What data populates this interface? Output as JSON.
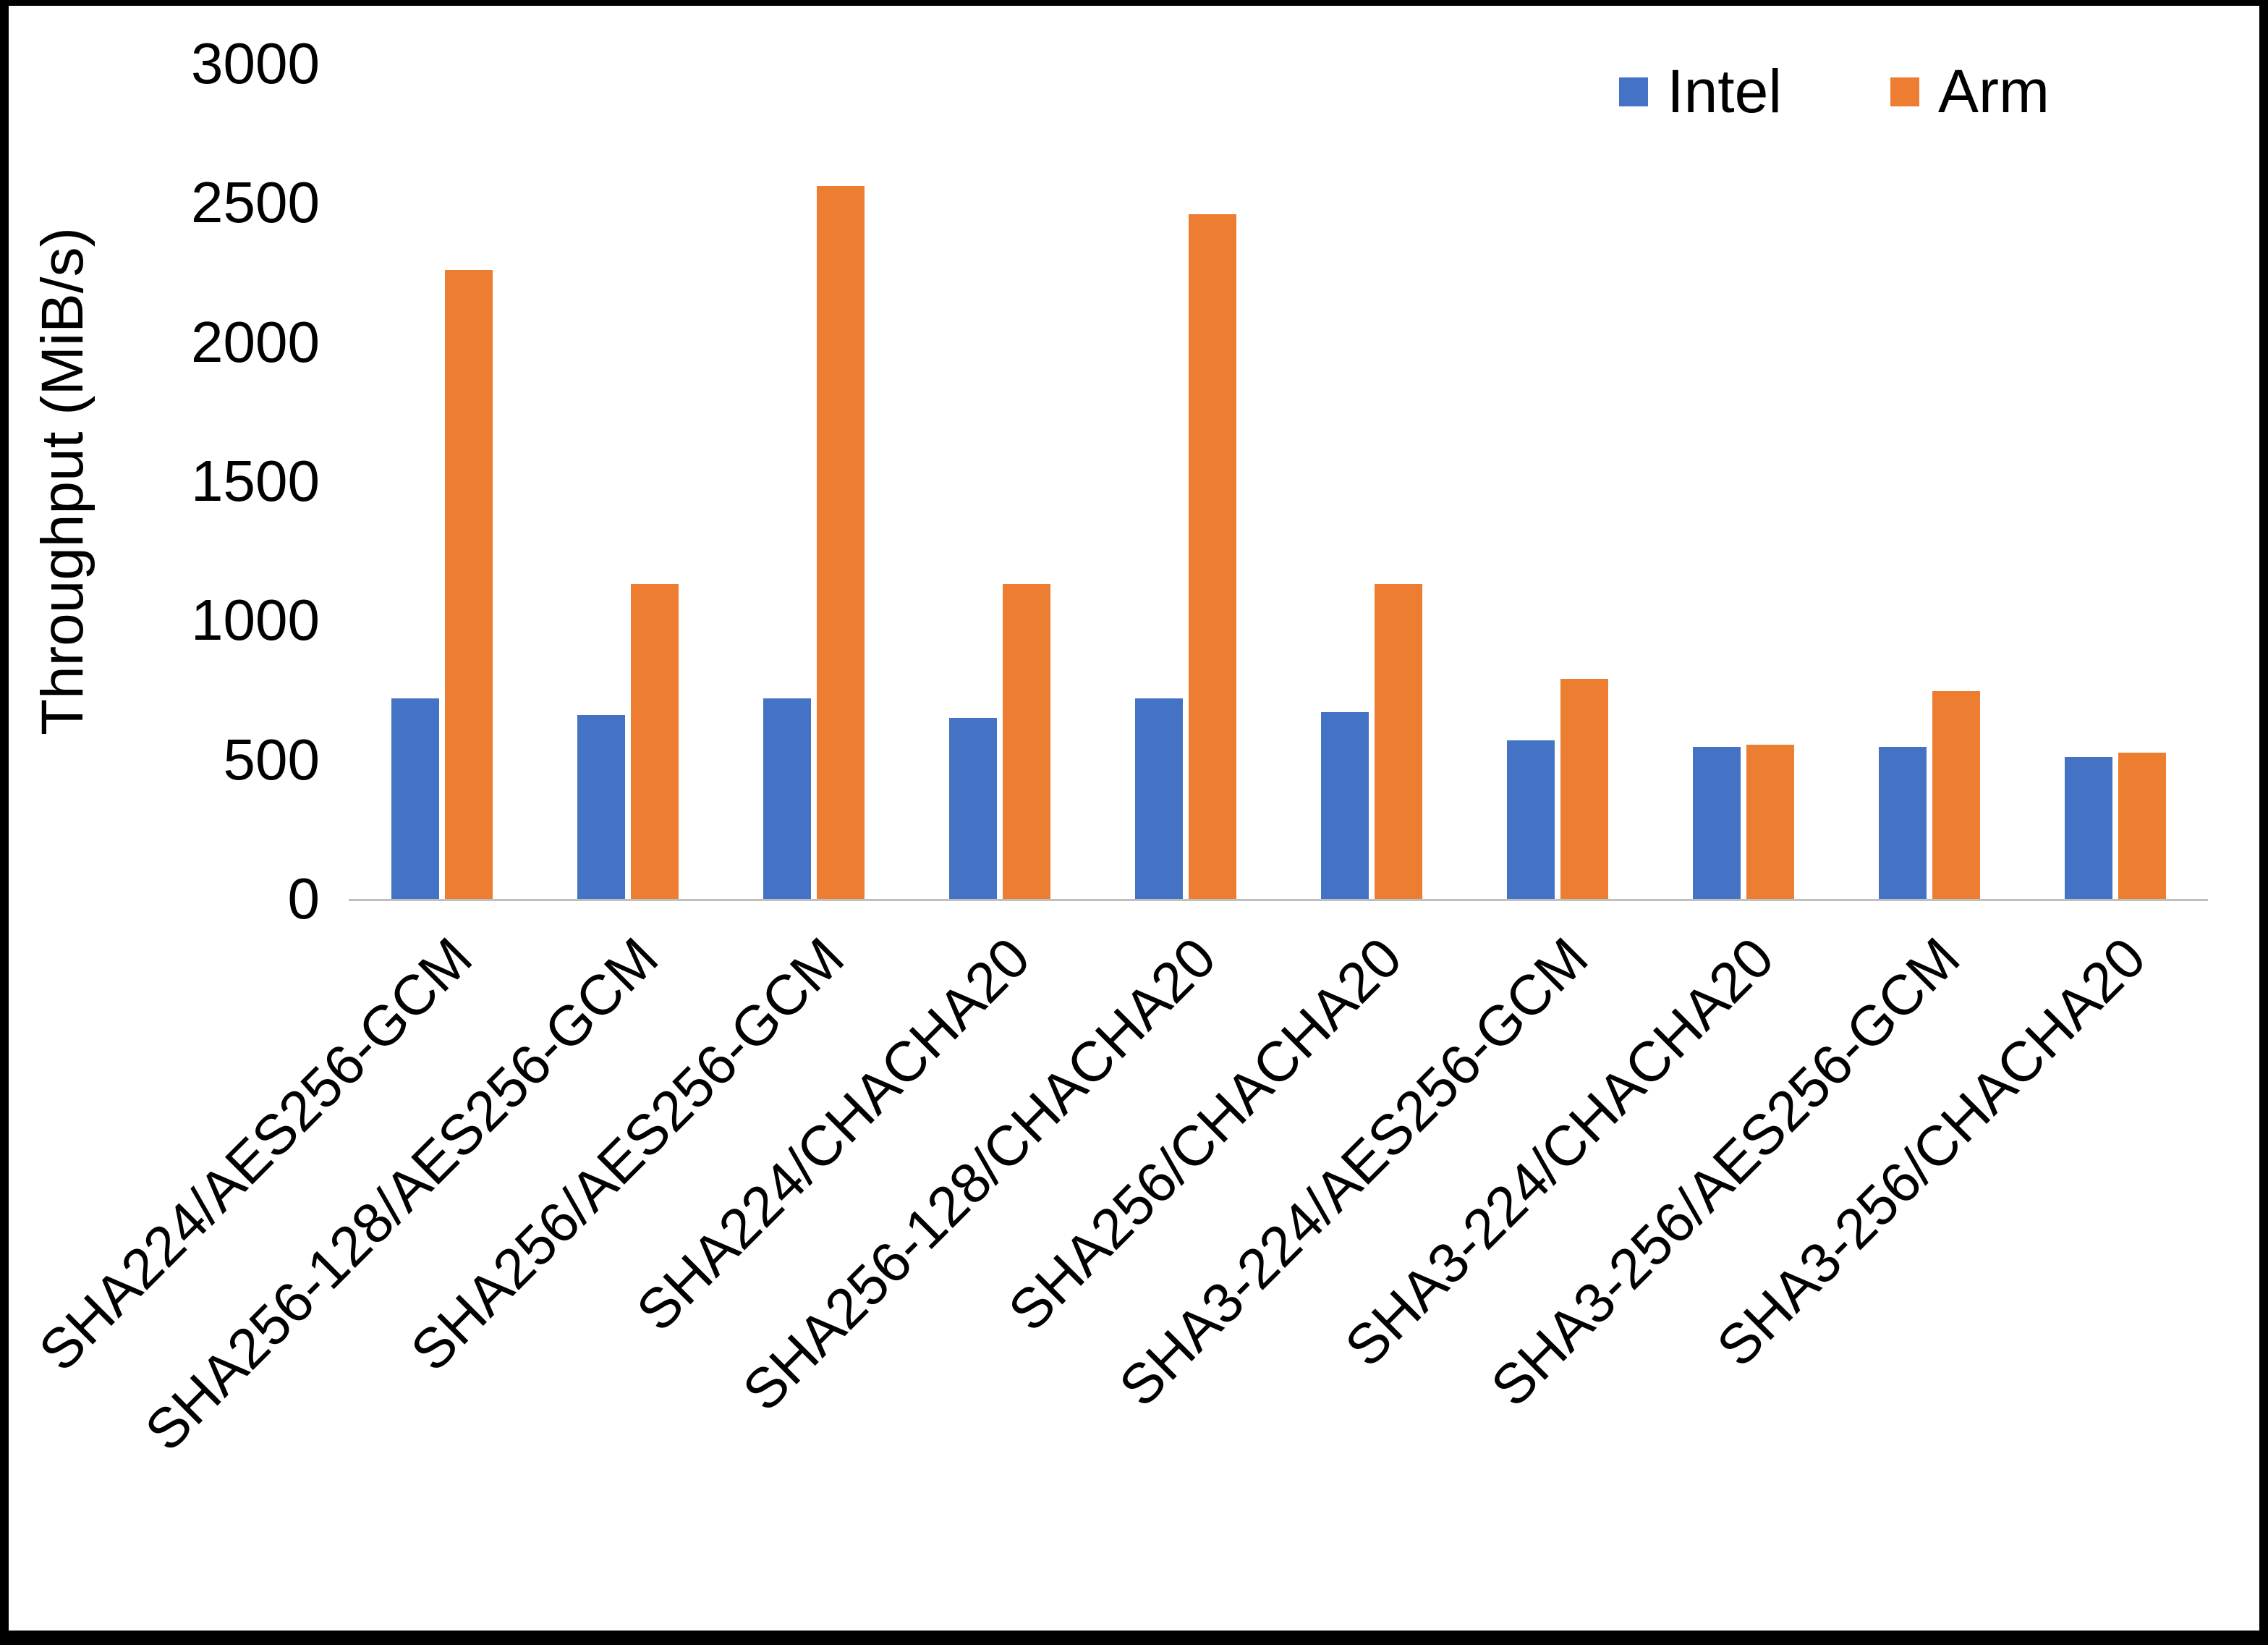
{
  "chart_data": {
    "type": "bar",
    "title": "",
    "xlabel": "",
    "ylabel": "Throughput (MiB/s)",
    "ylim": [
      0,
      3000
    ],
    "yticks": [
      0,
      500,
      1000,
      1500,
      2000,
      2500,
      3000
    ],
    "grid": false,
    "legend_position": "top-right",
    "categories": [
      "SHA224/AES256-GCM",
      "SHA256-128/AES256-GCM",
      "SHA256/AES256-GCM",
      "SHA224/CHACHA20",
      "SHA256-128/CHACHA20",
      "SHA256/CHACHA20",
      "SHA3-224/AES256-GCM",
      "SHA3-224/CHACHA20",
      "SHA3-256/AES256-GCM",
      "SHA3-256/CHACHA20"
    ],
    "series": [
      {
        "name": "Intel",
        "color": "#4472C4",
        "values": [
          720,
          660,
          720,
          650,
          720,
          670,
          570,
          545,
          545,
          510
        ]
      },
      {
        "name": "Arm",
        "color": "#ED7D31",
        "values": [
          2260,
          1130,
          2560,
          1130,
          2460,
          1130,
          790,
          555,
          745,
          525
        ]
      }
    ]
  }
}
